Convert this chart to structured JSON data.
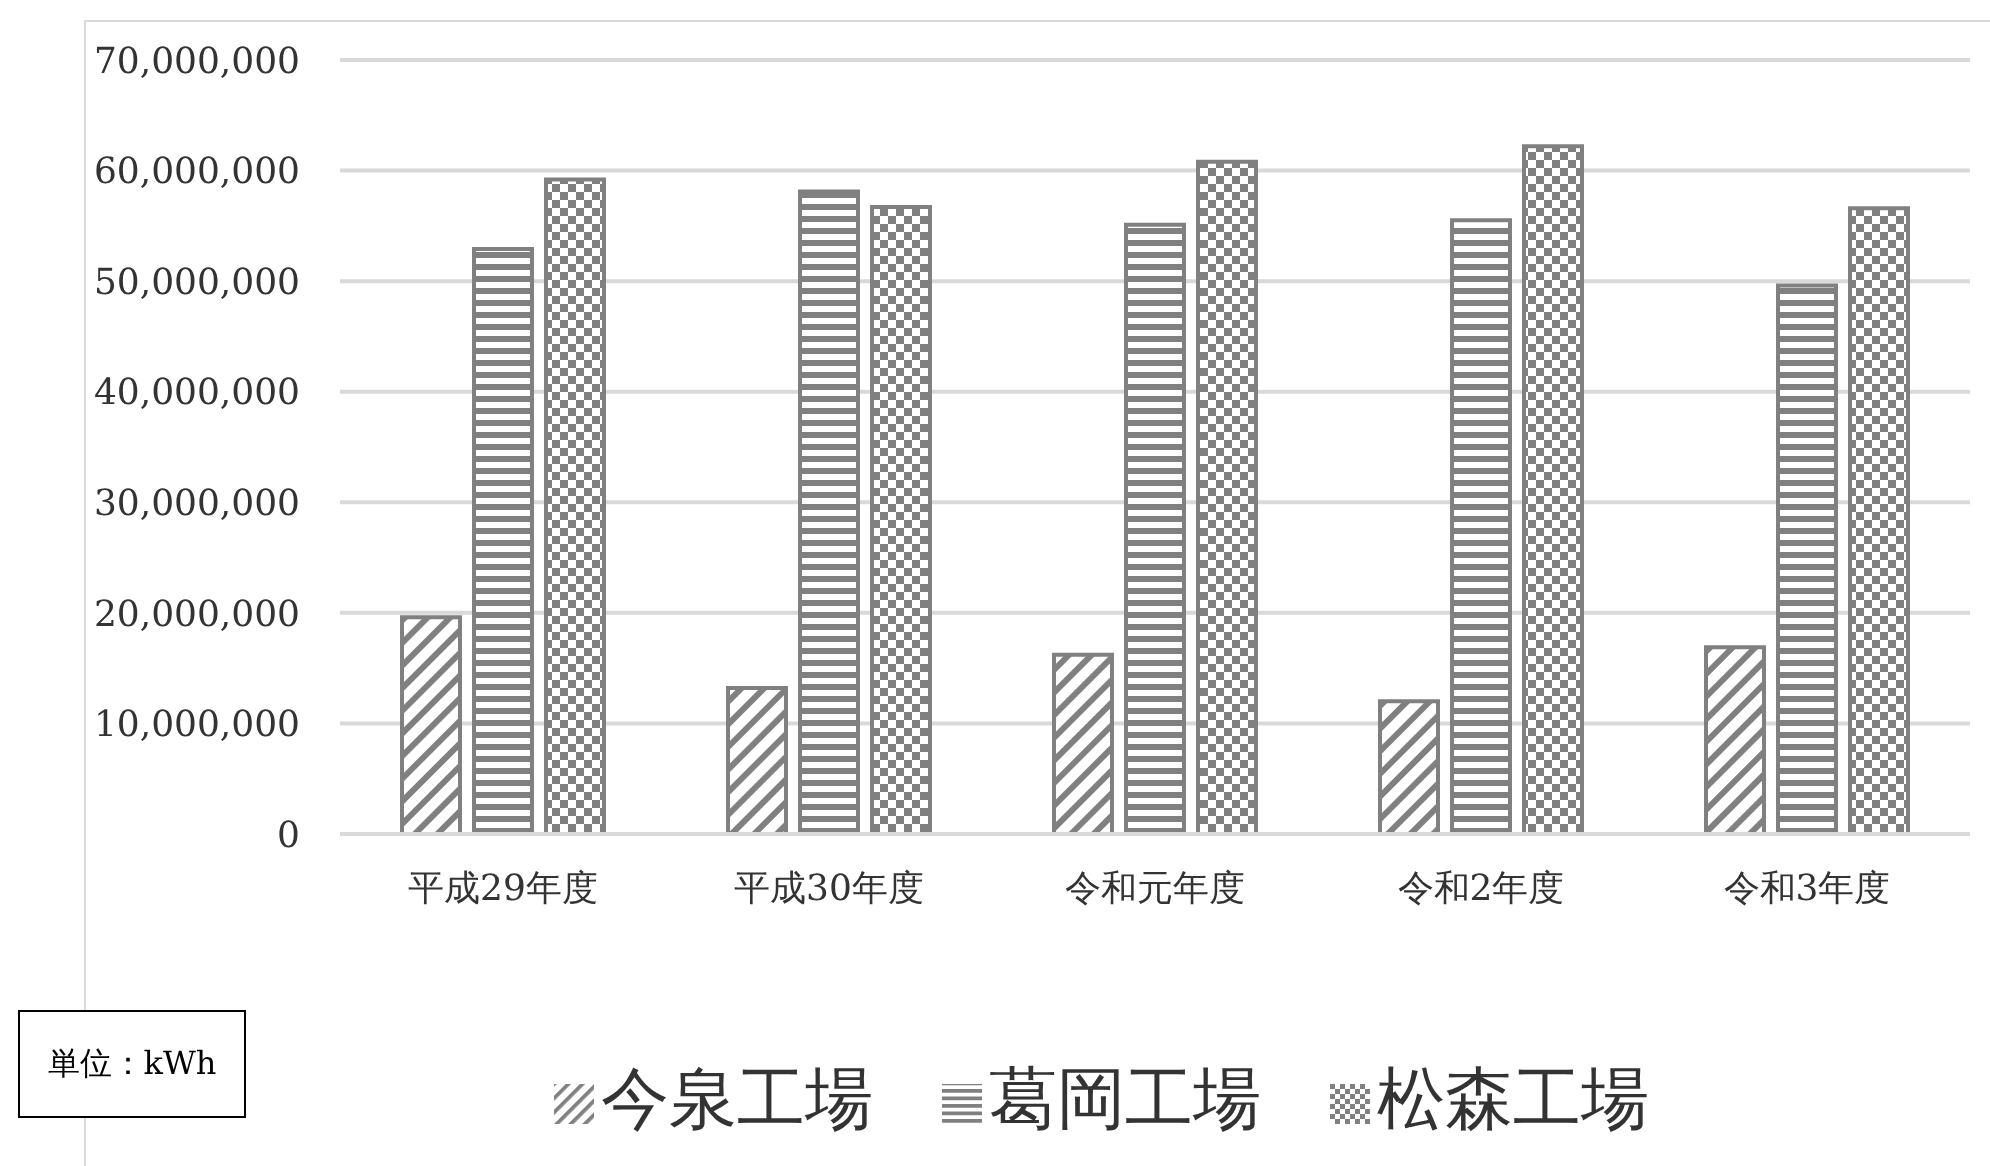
{
  "chart_data": {
    "type": "bar",
    "categories": [
      "平成29年度",
      "平成30年度",
      "令和元年度",
      "令和2年度",
      "令和3年度"
    ],
    "series": [
      {
        "name": "今泉工場",
        "color": "#808080",
        "values": [
          19600000,
          13200000,
          16200000,
          12000000,
          16900000
        ]
      },
      {
        "name": "葛岡工場",
        "color": "#808080",
        "values": [
          52900000,
          58100000,
          55100000,
          55500000,
          49600000
        ]
      },
      {
        "name": "松森工場",
        "color": "#808080",
        "values": [
          59200000,
          56700000,
          60800000,
          62200000,
          56600000
        ]
      }
    ],
    "ylim": [
      0,
      70000000
    ],
    "yticks": [
      0,
      {
        "value": 10000000,
        "label": "10,000,000"
      },
      {
        "value": 20000000,
        "label": "20,000,000"
      },
      {
        "value": 30000000,
        "label": "30,000,000"
      },
      {
        "value": 40000000,
        "label": "40,000,000"
      },
      {
        "value": 50000000,
        "label": "50,000,000"
      },
      {
        "value": 60000000,
        "label": "60,000,000"
      },
      {
        "value": 70000000,
        "label": "70,000,000"
      }
    ],
    "grid": "y",
    "legend": "bottom",
    "annotations": [
      "単位：kWh"
    ]
  }
}
